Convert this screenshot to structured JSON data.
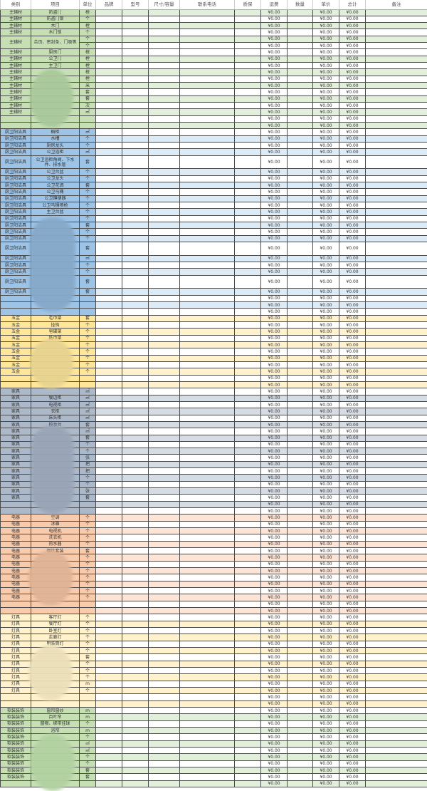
{
  "headers": [
    "类别",
    "项目",
    "单位",
    "品牌",
    "型号",
    "尺寸/容量",
    "联系电话",
    "质保",
    "运费",
    "数量",
    "单价",
    "总计",
    "备注"
  ],
  "amount_text": "¥0.00",
  "sections": [
    {
      "category": "主辅材",
      "primary": "#c6e0b4",
      "stripe": "#e2efda",
      "rows": [
        {
          "item": "防盗门",
          "unit": "樘"
        },
        {
          "item": "防盗门锁",
          "unit": "个"
        },
        {
          "item": "木门",
          "unit": "樘"
        },
        {
          "item": "木门锁",
          "unit": "个"
        },
        {
          "item": "合页、密封条、门吸等",
          "units": [
            "个",
            "个"
          ]
        },
        {
          "item": "厨房门",
          "unit": "樘"
        },
        {
          "item": "公卫门",
          "unit": "樘"
        },
        {
          "item": "主卫门",
          "unit": "樘"
        },
        {
          "item": "",
          "unit": "樘"
        },
        {
          "item": "",
          "unit": "樘"
        },
        {
          "item": "",
          "unit": "米"
        },
        {
          "item": "",
          "unit": "套"
        },
        {
          "item": "",
          "unit": "套"
        },
        {
          "item": "",
          "unit": "次"
        },
        {
          "item": "",
          "unit": "㎡"
        },
        {
          "item": "",
          "unit": ""
        },
        {
          "item": "",
          "unit": ""
        }
      ]
    },
    {
      "category": "厨卫阳洁具",
      "primary": "#9dc3e6",
      "stripe": "#ddebf7",
      "rows": [
        {
          "item": "橱柜",
          "unit": "㎡"
        },
        {
          "item": "水槽",
          "unit": "个"
        },
        {
          "item": "厨房龙头",
          "unit": "个"
        },
        {
          "item": "公卫浴柜",
          "unit": "㎡"
        },
        {
          "item": "公卫浴柜角阀、下水件、排水管",
          "unit": "套",
          "tall": true
        },
        {
          "item": "公卫台盆",
          "unit": "个"
        },
        {
          "item": "公卫龙头",
          "unit": "个"
        },
        {
          "item": "公卫花洒",
          "unit": "套"
        },
        {
          "item": "公卫马桶",
          "unit": "个"
        },
        {
          "item": "公卫蹲便器",
          "unit": "个"
        },
        {
          "item": "公卫马桶喷枪",
          "unit": "个"
        },
        {
          "item": "主卫台盆",
          "unit": "个"
        },
        {
          "item": "",
          "unit": "个"
        },
        {
          "item": "",
          "unit": "套"
        },
        {
          "item": "",
          "unit": "个"
        },
        {
          "item": "",
          "unit": "个"
        },
        {
          "item": "",
          "unit": "套",
          "tall": true
        },
        {
          "item": "",
          "unit": "㎡"
        },
        {
          "item": "",
          "unit": "个"
        },
        {
          "item": "",
          "unit": "个"
        },
        {
          "item": "",
          "unit": "套",
          "tall": true
        },
        {
          "item": "",
          "unit": "套"
        },
        {
          "item": "",
          "unit": ""
        },
        {
          "item": "",
          "unit": ""
        },
        {
          "item": "",
          "unit": ""
        }
      ]
    },
    {
      "category": "五金",
      "primary": "#ffe699",
      "stripe": "#fff2cc",
      "rows": [
        {
          "item": "毛巾架",
          "unit": "套"
        },
        {
          "item": "挂钩",
          "unit": "个"
        },
        {
          "item": "皂碟架",
          "unit": "个"
        },
        {
          "item": "纸巾架",
          "unit": "个"
        },
        {
          "item": "",
          "unit": "个"
        },
        {
          "item": "",
          "unit": "个"
        },
        {
          "item": "",
          "unit": "个"
        },
        {
          "item": "",
          "unit": "个"
        },
        {
          "item": "",
          "unit": "个"
        },
        {
          "item": "",
          "unit": "",
          "blank": true
        },
        {
          "item": "",
          "unit": "",
          "blank": true
        }
      ]
    },
    {
      "category": "家具",
      "primary": "#acb9ca",
      "stripe": "#d6dce4",
      "rows": [
        {
          "item": "",
          "unit": "㎡"
        },
        {
          "item": "餐边柜",
          "unit": "㎡"
        },
        {
          "item": "电视柜",
          "unit": "㎡"
        },
        {
          "item": "衣柜",
          "unit": "㎡"
        },
        {
          "item": "床头柜",
          "unit": "㎡"
        },
        {
          "item": "梳妆台",
          "unit": "套"
        },
        {
          "item": "",
          "unit": "㎡"
        },
        {
          "item": "",
          "unit": "套"
        },
        {
          "item": "",
          "unit": "个"
        },
        {
          "item": "",
          "unit": "个"
        },
        {
          "item": "",
          "unit": "张"
        },
        {
          "item": "",
          "unit": "把"
        },
        {
          "item": "",
          "unit": "把"
        },
        {
          "item": "",
          "unit": "个"
        },
        {
          "item": "",
          "unit": "个"
        },
        {
          "item": "",
          "unit": "张"
        },
        {
          "item": "",
          "unit": "套"
        },
        {
          "item": "",
          "unit": "",
          "blank": true
        },
        {
          "item": "",
          "unit": "",
          "blank": true
        }
      ]
    },
    {
      "category": "电器",
      "primary": "#f8cbad",
      "stripe": "#fce4d6",
      "rows": [
        {
          "item": "空调",
          "unit": "个"
        },
        {
          "item": "冰箱",
          "unit": "个"
        },
        {
          "item": "电视机",
          "unit": "个"
        },
        {
          "item": "洗衣机",
          "unit": "个"
        },
        {
          "item": "热水器",
          "unit": "个"
        },
        {
          "item": "烟灶套装",
          "unit": "套"
        },
        {
          "item": "",
          "unit": "个"
        },
        {
          "item": "",
          "unit": "个"
        },
        {
          "item": "",
          "unit": "个"
        },
        {
          "item": "",
          "unit": "个"
        },
        {
          "item": "",
          "unit": "个"
        },
        {
          "item": "",
          "unit": "个"
        },
        {
          "item": "",
          "unit": "个"
        },
        {
          "item": "",
          "unit": "",
          "blank": true
        },
        {
          "item": "",
          "unit": "",
          "blank": true
        }
      ]
    },
    {
      "category": "灯具",
      "primary": "#fff2cc",
      "stripe": "#fff2cc",
      "rows": [
        {
          "item": "客厅灯",
          "unit": "个"
        },
        {
          "item": "餐厅灯",
          "unit": "个"
        },
        {
          "item": "卧室灯",
          "unit": "个"
        },
        {
          "item": "走廊灯",
          "unit": "个"
        },
        {
          "item": "明装筒灯",
          "unit": "个"
        },
        {
          "item": "",
          "unit": "个"
        },
        {
          "item": "",
          "unit": "套"
        },
        {
          "item": "",
          "unit": "个"
        },
        {
          "item": "",
          "unit": "个"
        },
        {
          "item": "",
          "unit": "个"
        },
        {
          "item": "",
          "unit": "m"
        },
        {
          "item": "",
          "unit": "个"
        },
        {
          "item": "",
          "unit": "",
          "blank": true
        },
        {
          "item": "",
          "unit": "",
          "blank": true
        }
      ]
    },
    {
      "category": "软装装饰",
      "primary": "#c6e0b4",
      "stripe": "#e2efda",
      "rows": [
        {
          "item": "窗帘窗纱",
          "unit": "m"
        },
        {
          "item": "百叶帘",
          "unit": "m"
        },
        {
          "item": "窗幔、绑带挂球",
          "unit": "个"
        },
        {
          "item": "浴帘",
          "unit": "m"
        },
        {
          "item": "",
          "unit": "个"
        },
        {
          "item": "",
          "unit": "㎡"
        },
        {
          "item": "",
          "unit": "㎡"
        },
        {
          "item": "",
          "unit": "个"
        },
        {
          "item": "",
          "unit": "个"
        },
        {
          "item": "",
          "unit": "套"
        },
        {
          "item": "",
          "unit": "套"
        },
        {
          "item": "",
          "unit": ""
        }
      ]
    }
  ]
}
